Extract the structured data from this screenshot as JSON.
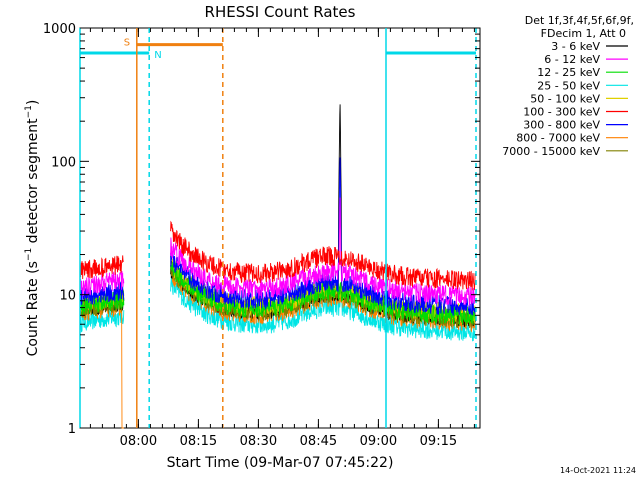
{
  "chart_data": {
    "type": "line",
    "title": "RHESSI Count Rates",
    "xlabel": "Start Time (09-Mar-07 07:45:22)",
    "ylabel_main": "Count Rate (s",
    "ylabel_sup": "−1",
    "ylabel_rest": " detector segment",
    "ylabel_sup2": "−1",
    "ylabel_end": ")",
    "yscale": "log",
    "ylim": [
      1,
      1000
    ],
    "xlim_minutes": [
      0,
      100
    ],
    "x_ticks": [
      {
        "label": "08:00",
        "t": 14.6
      },
      {
        "label": "08:15",
        "t": 29.6
      },
      {
        "label": "08:30",
        "t": 44.6
      },
      {
        "label": "08:45",
        "t": 59.6
      },
      {
        "label": "09:00",
        "t": 74.6
      },
      {
        "label": "09:15",
        "t": 89.6
      }
    ],
    "y_ticks": [
      {
        "label": "1",
        "v": 1
      },
      {
        "label": "10",
        "v": 10
      },
      {
        "label": "100",
        "v": 100
      },
      {
        "label": "1000",
        "v": 1000
      }
    ],
    "legend_header": [
      "Det 1f,3f,4f,5f,6f,9f,",
      "FDecim 1, Att 0"
    ],
    "series": [
      {
        "name": "3 - 6 keV",
        "color": "#000000",
        "base": 8.0
      },
      {
        "name": "6 - 12 keV",
        "color": "#ff00ff",
        "base": 11.5
      },
      {
        "name": "12 - 25 keV",
        "color": "#00dd00",
        "base": 8.2
      },
      {
        "name": "25 - 50 keV",
        "color": "#00e5e5",
        "base": 6.2
      },
      {
        "name": "50 - 100 keV",
        "color": "#e0d000",
        "base": 8.6
      },
      {
        "name": "100 - 300 keV",
        "color": "#ff0000",
        "base": 15.0
      },
      {
        "name": "300 - 800 keV",
        "color": "#0000ff",
        "base": 9.6
      },
      {
        "name": "800 - 7000 keV",
        "color": "#ff8000",
        "base": 7.4
      },
      {
        "name": "7000 - 15000 keV",
        "color": "#808000",
        "base": 7.8
      }
    ],
    "data_gap_minutes": [
      11.0,
      22.6
    ],
    "night_level": 650,
    "night_intervals": [
      {
        "label": "N",
        "start": 0.0,
        "end": 17.3
      },
      {
        "start": 76.5,
        "end": 99.0
      }
    ],
    "saa_intervals": [
      {
        "label": "S",
        "start": 14.2,
        "end": 35.7,
        "level": 750
      }
    ],
    "flare_spike": {
      "t": 65.0,
      "peak": 320
    },
    "timestamp": "14-Oct-2021 11:24"
  }
}
